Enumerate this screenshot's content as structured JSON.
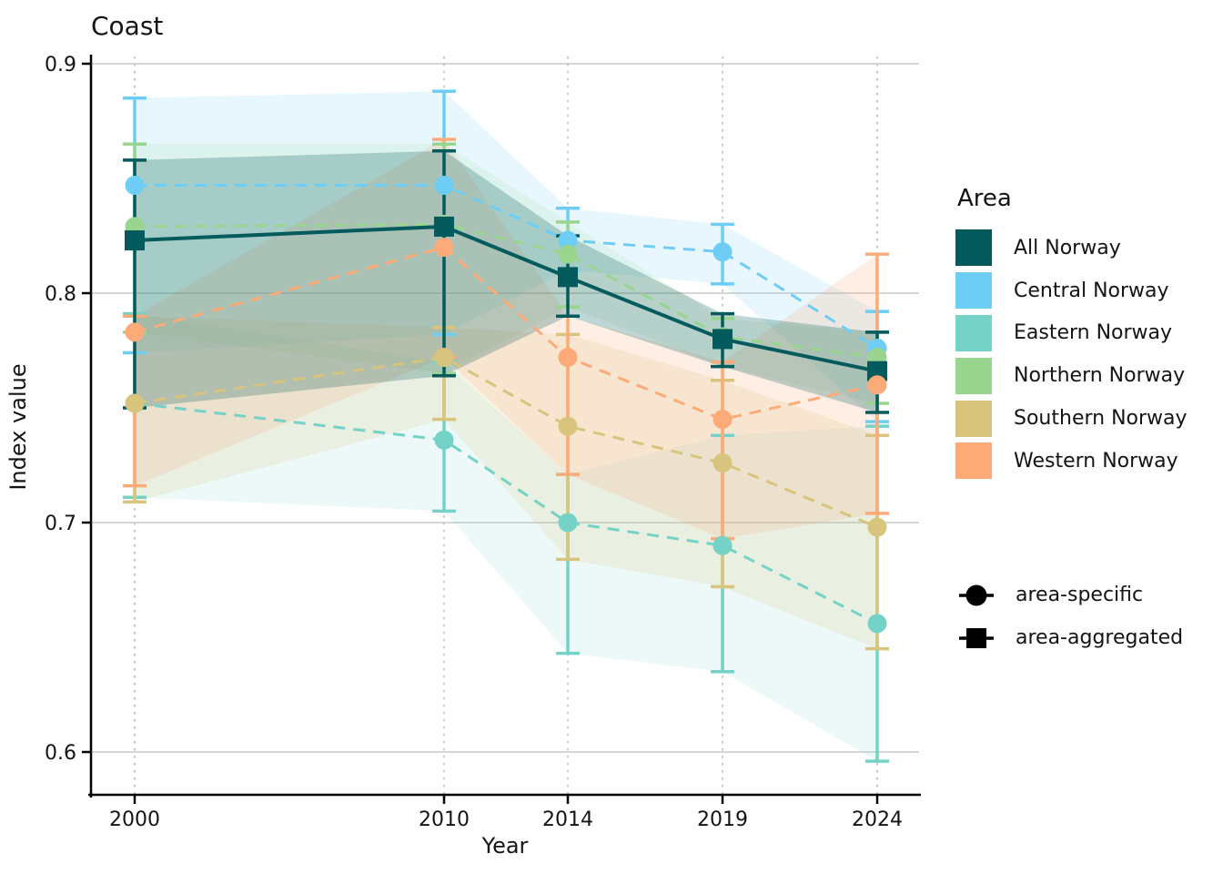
{
  "chart_data": {
    "type": "line",
    "title": "Coast",
    "xlabel": "Year",
    "ylabel": "Index value",
    "x": [
      2000,
      2010,
      2014,
      2019,
      2024
    ],
    "x_tick_labels": [
      "2000",
      "2010",
      "2014",
      "2019",
      "2024"
    ],
    "y_ticks": [
      0.9,
      0.8,
      0.7,
      0.6
    ],
    "y_tick_labels": [
      "0.9",
      "0.8",
      "0.7",
      "0.6"
    ],
    "ylim": [
      0.581,
      0.903
    ],
    "xlim": [
      1998.6,
      2025.4
    ],
    "grid": {
      "horizontal": "solid",
      "vertical": "dotted"
    },
    "series": [
      {
        "name": "All Norway",
        "color": "#045a5c",
        "marker": "square",
        "line_style": "solid",
        "kind": "area-aggregated",
        "values": [
          0.823,
          0.829,
          0.807,
          0.78,
          0.766
        ],
        "ci_lower": [
          0.75,
          0.764,
          0.79,
          0.768,
          0.748
        ],
        "ci_upper": [
          0.858,
          0.862,
          0.825,
          0.791,
          0.783
        ]
      },
      {
        "name": "Central Norway",
        "color": "#6dcdf4",
        "marker": "circle",
        "line_style": "dashed",
        "kind": "area-specific",
        "values": [
          0.847,
          0.847,
          0.823,
          0.818,
          0.776
        ],
        "ci_lower": [
          0.774,
          0.782,
          0.81,
          0.804,
          0.744
        ],
        "ci_upper": [
          0.885,
          0.888,
          0.837,
          0.83,
          0.792
        ]
      },
      {
        "name": "Eastern Norway",
        "color": "#74d2c6",
        "marker": "circle",
        "line_style": "dashed",
        "kind": "area-specific",
        "values": [
          0.752,
          0.736,
          0.7,
          0.69,
          0.656
        ],
        "ci_lower": [
          0.711,
          0.705,
          0.643,
          0.635,
          0.596
        ],
        "ci_upper": [
          0.791,
          0.77,
          0.721,
          0.738,
          0.742
        ]
      },
      {
        "name": "Northern Norway",
        "color": "#99d58f",
        "marker": "circle",
        "line_style": "dashed",
        "kind": "area-specific",
        "values": [
          0.829,
          0.83,
          0.817,
          0.781,
          0.772
        ],
        "ci_lower": [
          0.783,
          0.765,
          0.794,
          0.768,
          0.752
        ],
        "ci_upper": [
          0.865,
          0.865,
          0.831,
          0.789,
          0.783
        ]
      },
      {
        "name": "Southern Norway",
        "color": "#d8c47c",
        "marker": "circle",
        "line_style": "dashed",
        "kind": "area-specific",
        "values": [
          0.752,
          0.772,
          0.742,
          0.726,
          0.698
        ],
        "ci_lower": [
          0.709,
          0.745,
          0.684,
          0.672,
          0.645
        ],
        "ci_upper": [
          0.79,
          0.785,
          0.782,
          0.762,
          0.738
        ]
      },
      {
        "name": "Western Norway",
        "color": "#fcab78",
        "marker": "circle",
        "line_style": "dashed",
        "kind": "area-specific",
        "values": [
          0.783,
          0.82,
          0.772,
          0.745,
          0.76
        ],
        "ci_lower": [
          0.716,
          0.772,
          0.721,
          0.693,
          0.704
        ],
        "ci_upper": [
          0.79,
          0.867,
          0.79,
          0.77,
          0.817
        ]
      }
    ]
  },
  "legend": {
    "title": "Area",
    "entries": [
      {
        "label": "All Norway",
        "color": "#045a5c"
      },
      {
        "label": "Central Norway",
        "color": "#6dcdf4"
      },
      {
        "label": "Eastern Norway",
        "color": "#74d2c6"
      },
      {
        "label": "Northern Norway",
        "color": "#99d58f"
      },
      {
        "label": "Southern Norway",
        "color": "#d8c47c"
      },
      {
        "label": "Western Norway",
        "color": "#fcab78"
      }
    ],
    "marker_legend": [
      {
        "label": "area-specific",
        "marker": "circle"
      },
      {
        "label": "area-aggregated",
        "marker": "square"
      }
    ]
  },
  "colors": {
    "grid_major": "#d6d6d6",
    "grid_dotted": "#c9c9c9",
    "axis": "#000000",
    "text": "#141414"
  }
}
